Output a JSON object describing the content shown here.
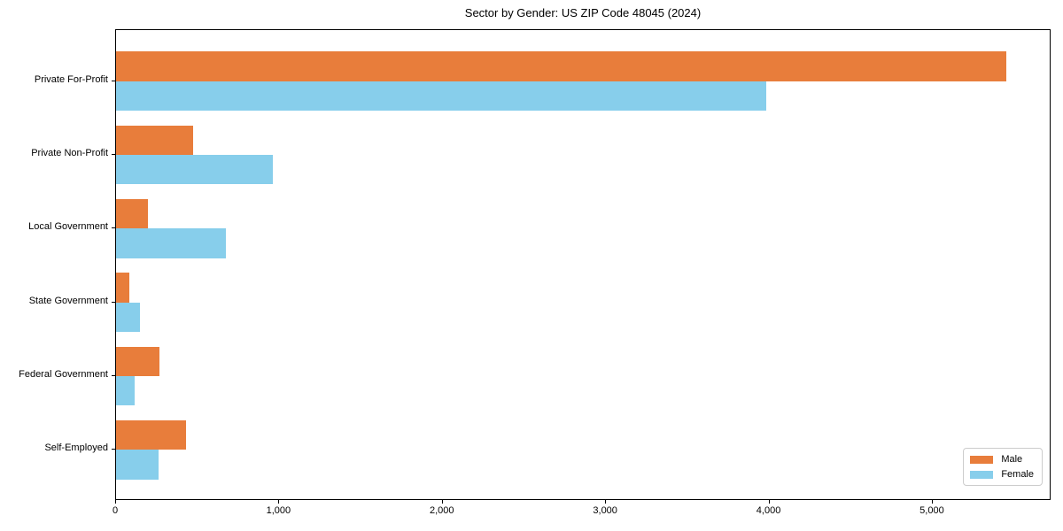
{
  "chart_data": {
    "type": "bar",
    "orientation": "horizontal",
    "title": "Sector by Gender: US ZIP Code 48045 (2024)",
    "categories": [
      "Private For-Profit",
      "Private Non-Profit",
      "Local Government",
      "State Government",
      "Federal Government",
      "Self-Employed"
    ],
    "series": [
      {
        "name": "Male",
        "color": "#e87d3b",
        "values": [
          5450,
          470,
          195,
          80,
          265,
          430
        ]
      },
      {
        "name": "Female",
        "color": "#87ceeb",
        "values": [
          3980,
          960,
          675,
          148,
          112,
          262
        ]
      }
    ],
    "xlabel": "",
    "ylabel": "",
    "xlim": [
      0,
      5727
    ],
    "xticks": [
      0,
      1000,
      2000,
      3000,
      4000,
      5000
    ],
    "xtick_labels": [
      "0",
      "1,000",
      "2,000",
      "3,000",
      "4,000",
      "5,000"
    ],
    "legend": {
      "position": "lower right",
      "entries": [
        "Male",
        "Female"
      ]
    },
    "grid": false
  }
}
